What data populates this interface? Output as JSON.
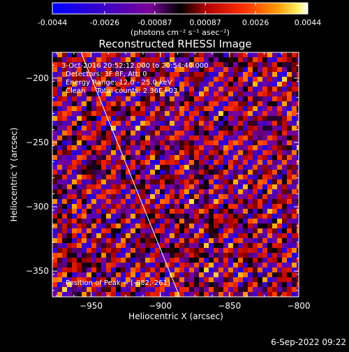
{
  "chart_data": {
    "type": "heatmap",
    "title": "Reconstructed RHESSI Image",
    "xlabel": "Heliocentric X (arcsec)",
    "ylabel": "Heliocentric Y (arcsec)",
    "xlim": [
      -978,
      -800
    ],
    "ylim": [
      -370,
      -180
    ],
    "xticks": [
      -950,
      -900,
      -850,
      -800
    ],
    "yticks": [
      -200,
      -250,
      -300,
      -350
    ],
    "colorbar": {
      "min": -0.0044,
      "max": 0.0044,
      "ticks": [
        "-0.0044",
        "-0.0026",
        "-0.00087",
        "0.00087",
        "0.0026",
        "0.0044"
      ],
      "tick_values": [
        -0.0044,
        -0.0026,
        -0.00087,
        0.00087,
        0.0026,
        0.0044
      ],
      "unit_label": "(photons cm⁻² s⁻¹ asec⁻²)"
    },
    "info_lines": [
      "3-Oct-2016 20:52:12.000 to 20:54:40.000",
      "Detectors: 3F 8F, Att: 0",
      "Energy Range: 12.0 - 25.0 keV",
      "Clean     Total counts: 2.36E+03"
    ],
    "peak_label": "Position of Peak = [-882,-261]",
    "peak_position": [
      -882,
      -261
    ],
    "limb_line": [
      [
        -958,
        -178
      ],
      [
        -886,
        -370
      ]
    ],
    "colors": {
      "background": "#000000",
      "foreground": "#ffffff"
    }
  },
  "footer": {
    "timestamp": "6-Sep-2022 09:22"
  }
}
